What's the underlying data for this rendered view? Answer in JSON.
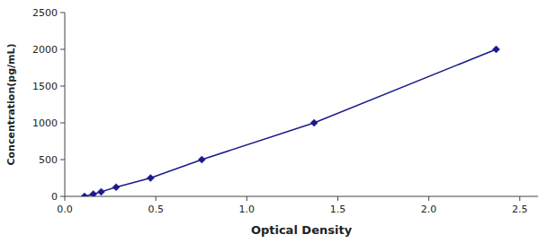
{
  "chart_data": {
    "type": "line",
    "x": [
      0.108,
      0.157,
      0.2,
      0.282,
      0.471,
      0.753,
      1.37,
      2.37
    ],
    "values": [
      0,
      31.25,
      62.5,
      125,
      250,
      500,
      1000,
      2000
    ],
    "color": "#1a1a8c",
    "marker": "diamond",
    "line_style": "solid",
    "xlabel": "Optical Density",
    "ylabel": "Concentration(pg/mL)",
    "xlim": [
      0.0,
      2.6
    ],
    "ylim": [
      0,
      2500
    ],
    "xticks": [
      {
        "value": 0,
        "label": "0.0"
      },
      0.5,
      {
        "value": 1,
        "label": "1.0"
      },
      1.5,
      {
        "value": 2,
        "label": "2.0"
      },
      2.5
    ],
    "yticks": [
      0,
      500,
      1000,
      1500,
      2000,
      2500
    ],
    "grid": false
  }
}
